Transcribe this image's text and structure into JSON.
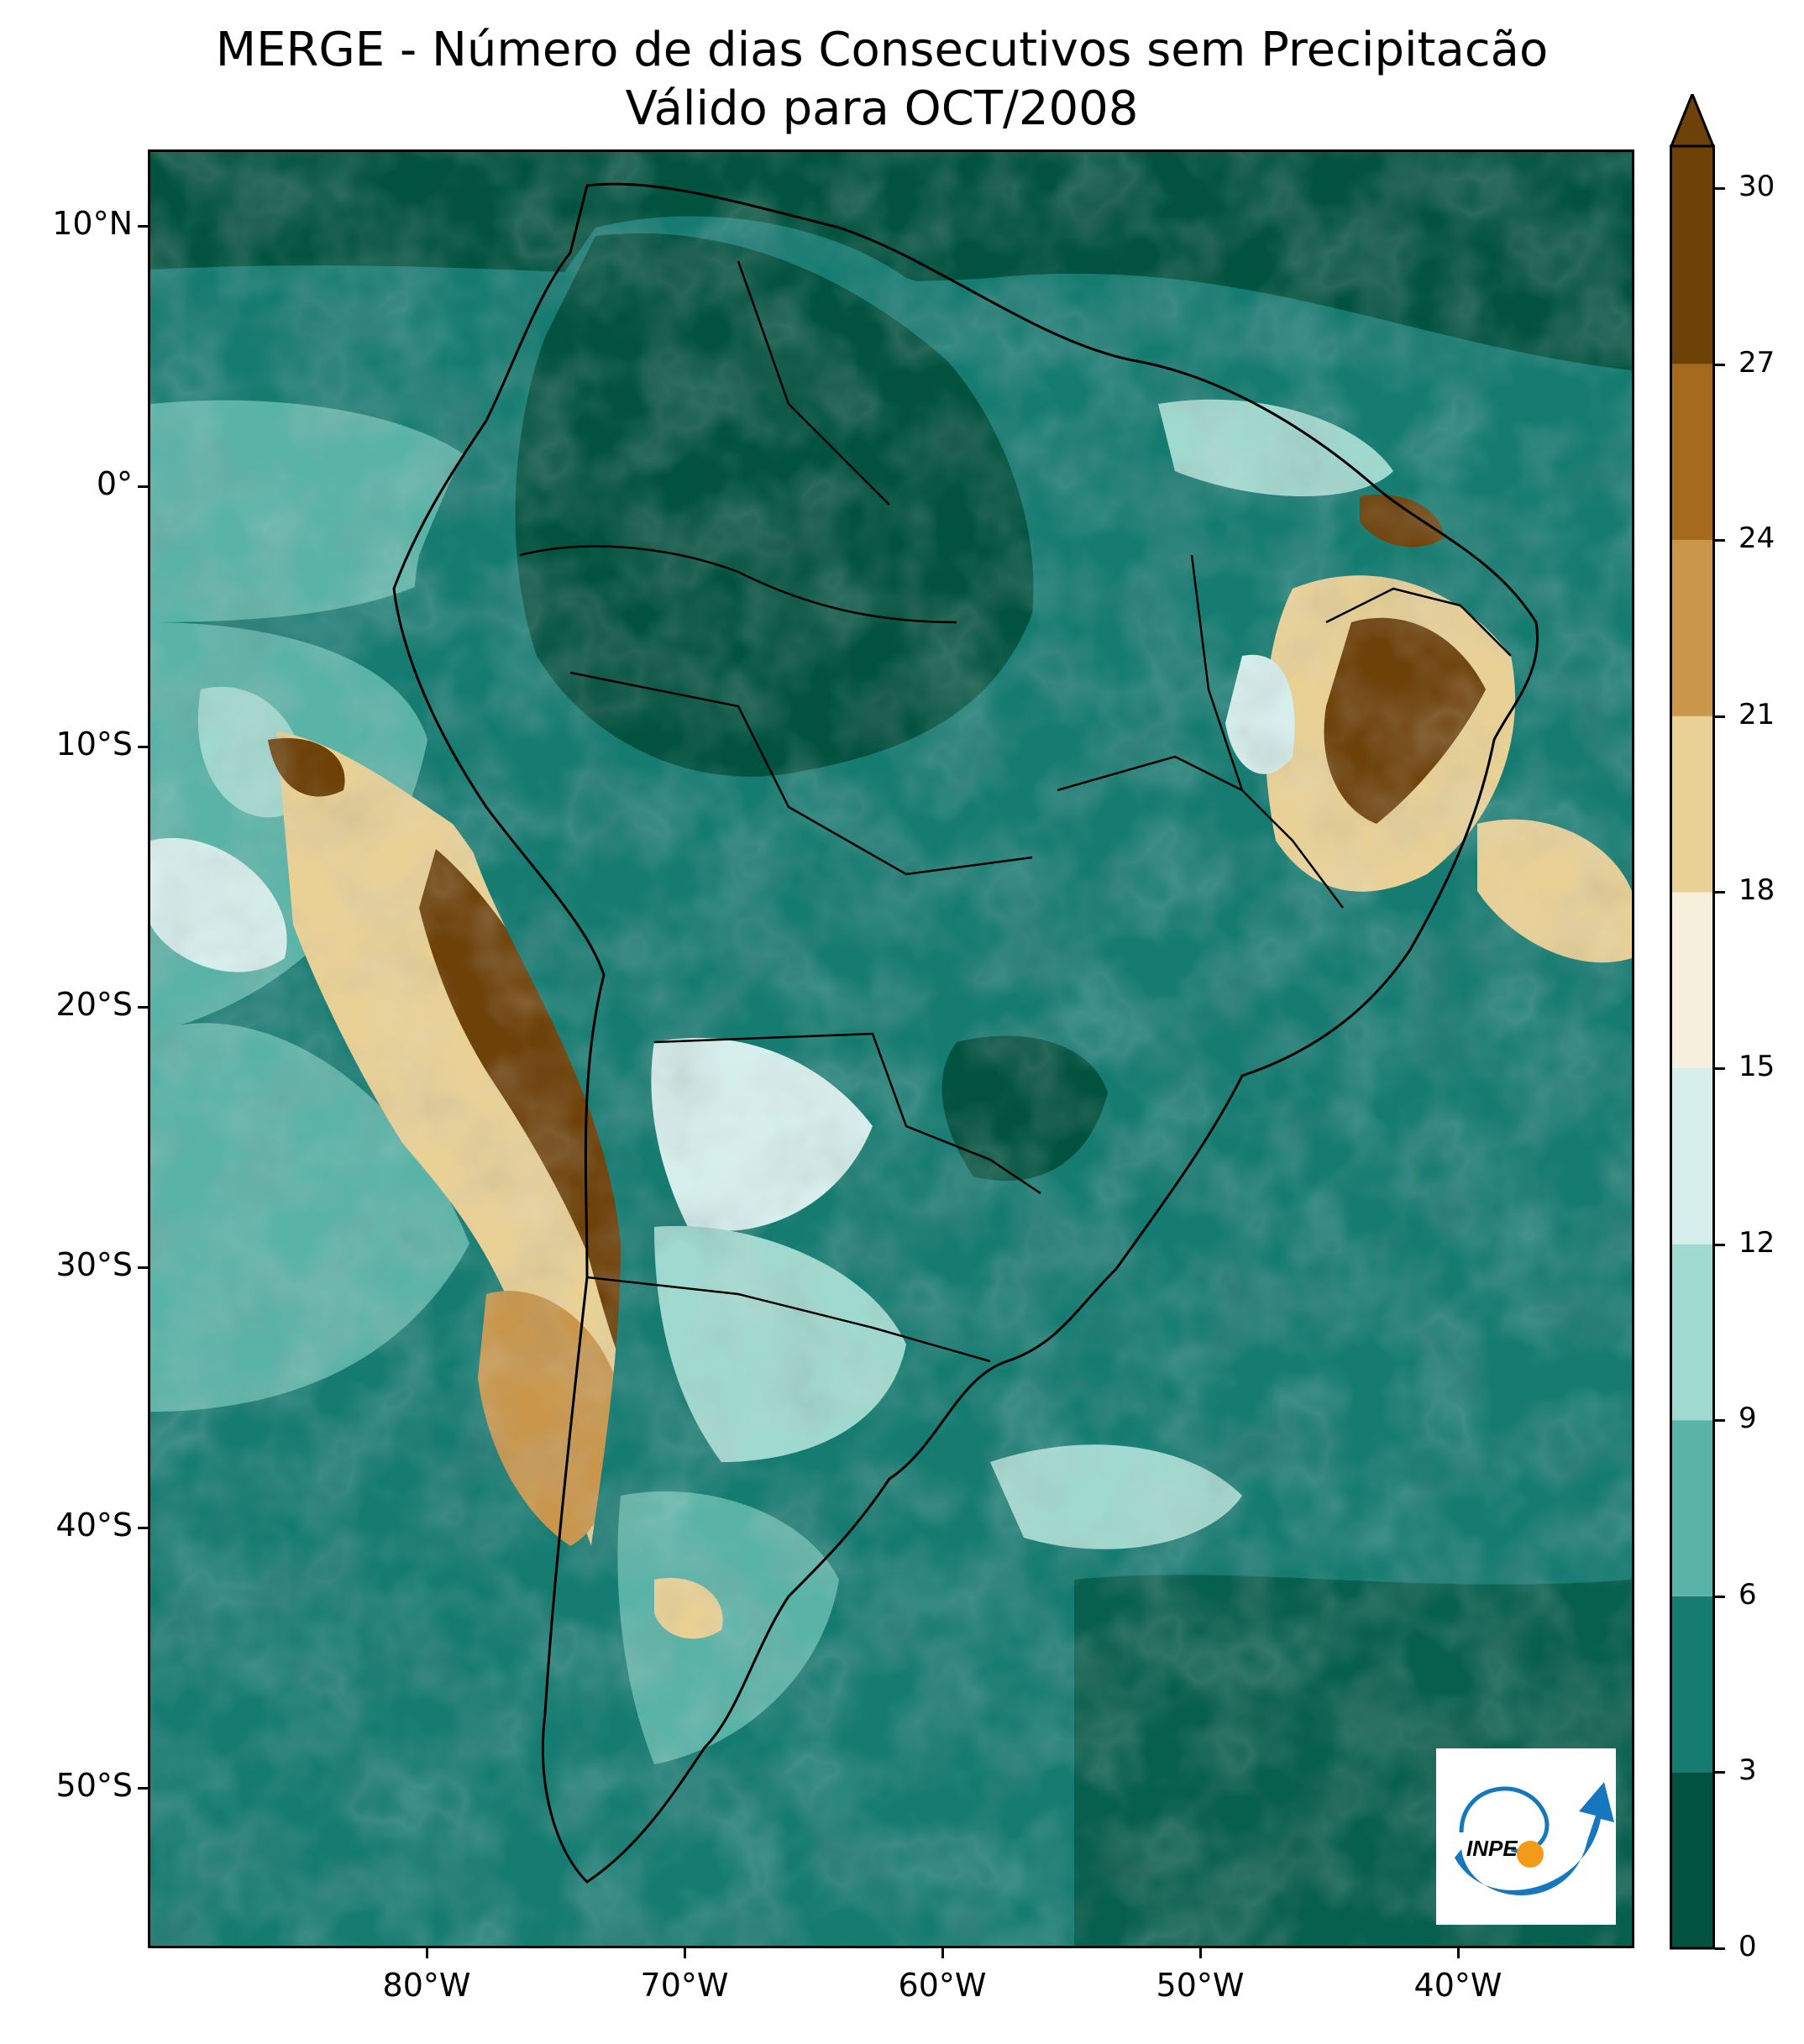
{
  "title_line1": "MERGE - Número de dias Consecutivos sem Precipitacão",
  "title_line2": "Válido para OCT/2008",
  "lat_labels": [
    "10°N",
    "0°",
    "10°S",
    "20°S",
    "30°S",
    "40°S",
    "50°S"
  ],
  "lon_labels": [
    "80°W",
    "70°W",
    "60°W",
    "50°W",
    "40°W"
  ],
  "colorbar": {
    "ticks": [
      "0",
      "3",
      "6",
      "9",
      "12",
      "15",
      "18",
      "21",
      "24",
      "27",
      "30"
    ],
    "colors": [
      "#01523f",
      "#167c72",
      "#5ab3a7",
      "#9fd9cf",
      "#d6efec",
      "#f6efdc",
      "#e9d195",
      "#c9964a",
      "#a66a1f",
      "#6e4109"
    ],
    "extend": "max"
  },
  "logo_text": "INPE",
  "logo_colors": {
    "arc": "#1677bf",
    "sun": "#f39a19"
  }
}
